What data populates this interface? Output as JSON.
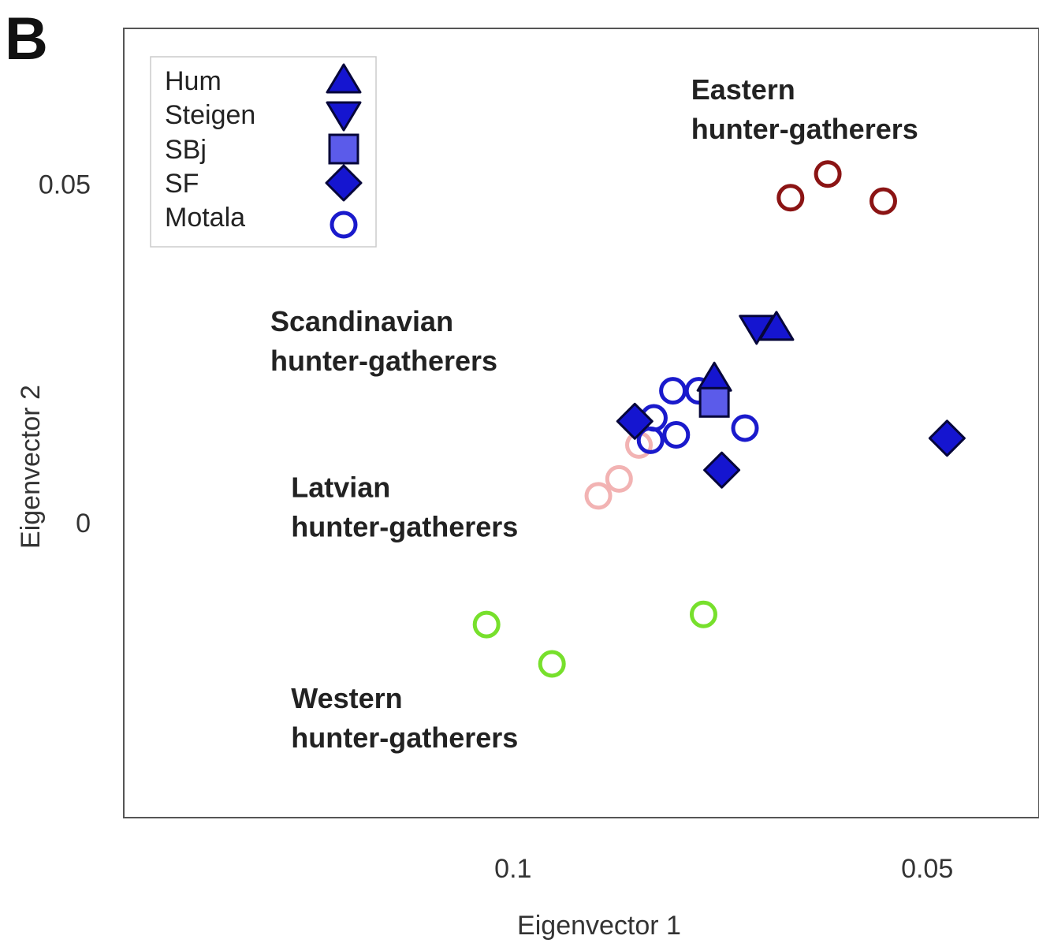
{
  "panel_label": "B",
  "chart_data": {
    "type": "scatter",
    "xlabel": "Eigenvector 1",
    "ylabel": "Eigenvector 2",
    "x_reversed": true,
    "xlim": [
      0.147,
      0.0365
    ],
    "ylim": [
      -0.0435,
      0.073
    ],
    "x_ticks": [
      {
        "value": 0.1,
        "label": "0.1"
      },
      {
        "value": 0.05,
        "label": "0.05"
      }
    ],
    "y_ticks": [
      {
        "value": 0.05,
        "label": "0.05"
      },
      {
        "value": 0,
        "label": "0"
      }
    ],
    "legend": {
      "position": "top-left",
      "entries": [
        {
          "label": "Hum",
          "marker": "triangle-up"
        },
        {
          "label": "Steigen",
          "marker": "triangle-down"
        },
        {
          "label": "SBj",
          "marker": "square"
        },
        {
          "label": "SF",
          "marker": "diamond"
        },
        {
          "label": "Motala",
          "marker": "circle-open"
        }
      ]
    },
    "annotations": [
      {
        "lines": [
          "Eastern",
          "hunter-gatherers"
        ],
        "x": 0.0785,
        "y": 0.0625
      },
      {
        "lines": [
          "Scandinavian",
          "hunter-gatherers"
        ],
        "x": 0.1293,
        "y": 0.0283
      },
      {
        "lines": [
          "Latvian",
          "hunter-gatherers"
        ],
        "x": 0.1268,
        "y": 0.0038
      },
      {
        "lines": [
          "Western",
          "hunter-gatherers"
        ],
        "x": 0.1268,
        "y": -0.0273
      }
    ],
    "colors": {
      "marker_fill": "#1515d0",
      "marker_stroke": "#06063a",
      "sbj_fill": "#5b5bea",
      "motala": "#1a1acc",
      "eastern": "#8b1414",
      "latvian": "#f2b3b3",
      "western": "#77e02c"
    },
    "series": [
      {
        "name": "Hum",
        "marker": "triangle-up",
        "points": [
          {
            "x": 0.0682,
            "y": 0.0288
          },
          {
            "x": 0.0757,
            "y": 0.0213
          }
        ]
      },
      {
        "name": "Steigen",
        "marker": "triangle-down",
        "points": [
          {
            "x": 0.0706,
            "y": 0.0288
          }
        ]
      },
      {
        "name": "SBj",
        "marker": "square",
        "points": [
          {
            "x": 0.0757,
            "y": 0.0178
          }
        ]
      },
      {
        "name": "SF",
        "marker": "diamond",
        "points": [
          {
            "x": 0.0853,
            "y": 0.015
          },
          {
            "x": 0.0748,
            "y": 0.0078
          },
          {
            "x": 0.0476,
            "y": 0.0125
          }
        ]
      },
      {
        "name": "Motala",
        "marker": "circle-open",
        "points": [
          {
            "x": 0.0807,
            "y": 0.0195
          },
          {
            "x": 0.0776,
            "y": 0.0195
          },
          {
            "x": 0.083,
            "y": 0.0155
          },
          {
            "x": 0.0834,
            "y": 0.0122
          },
          {
            "x": 0.0803,
            "y": 0.013
          },
          {
            "x": 0.072,
            "y": 0.014
          }
        ]
      },
      {
        "group": "eastern",
        "marker": "circle-open",
        "points": [
          {
            "x": 0.0665,
            "y": 0.048
          },
          {
            "x": 0.062,
            "y": 0.0515
          },
          {
            "x": 0.0553,
            "y": 0.0475
          }
        ]
      },
      {
        "group": "latvian",
        "marker": "circle-open",
        "points": [
          {
            "x": 0.0848,
            "y": 0.0115
          },
          {
            "x": 0.0872,
            "y": 0.0065
          },
          {
            "x": 0.0897,
            "y": 0.004
          }
        ]
      },
      {
        "group": "western",
        "marker": "circle-open",
        "points": [
          {
            "x": 0.1032,
            "y": -0.015
          },
          {
            "x": 0.0953,
            "y": -0.0208
          },
          {
            "x": 0.077,
            "y": -0.0135
          }
        ]
      }
    ]
  }
}
